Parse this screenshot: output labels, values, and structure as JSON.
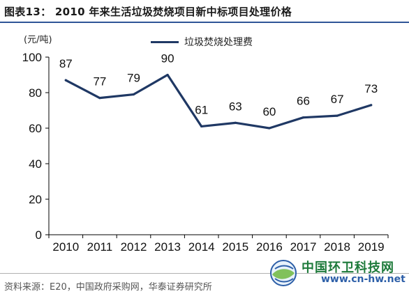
{
  "title": "图表13：  2010 年来生活垃圾焚烧项目新中标项目处理价格",
  "chart_data": {
    "type": "line",
    "title": "",
    "unit_label": "(元/吨)",
    "xlabel": "",
    "ylabel": "",
    "categories": [
      "2010",
      "2011",
      "2012",
      "2013",
      "2014",
      "2015",
      "2016",
      "2017",
      "2018",
      "2019"
    ],
    "series": [
      {
        "name": "垃圾焚烧处理费",
        "values": [
          87,
          77,
          79,
          90,
          61,
          63,
          60,
          66,
          67,
          73
        ],
        "color": "#1f3864"
      }
    ],
    "ylim": [
      0,
      100
    ],
    "yticks": [
      "0",
      "20",
      "40",
      "60",
      "80",
      "100"
    ],
    "grid": false,
    "legend_position": "top-center",
    "data_labels": true
  },
  "source": "资料来源：E20，中国政府采购网，华泰证券研究所",
  "watermark": {
    "name": "中国环卫科技网",
    "url": "www.cn-hw.net"
  },
  "colors": {
    "accent": "#2f5597",
    "line": "#1f3864",
    "watermark_green": "#1d7a3a",
    "watermark_blue": "#2d5fa8"
  }
}
